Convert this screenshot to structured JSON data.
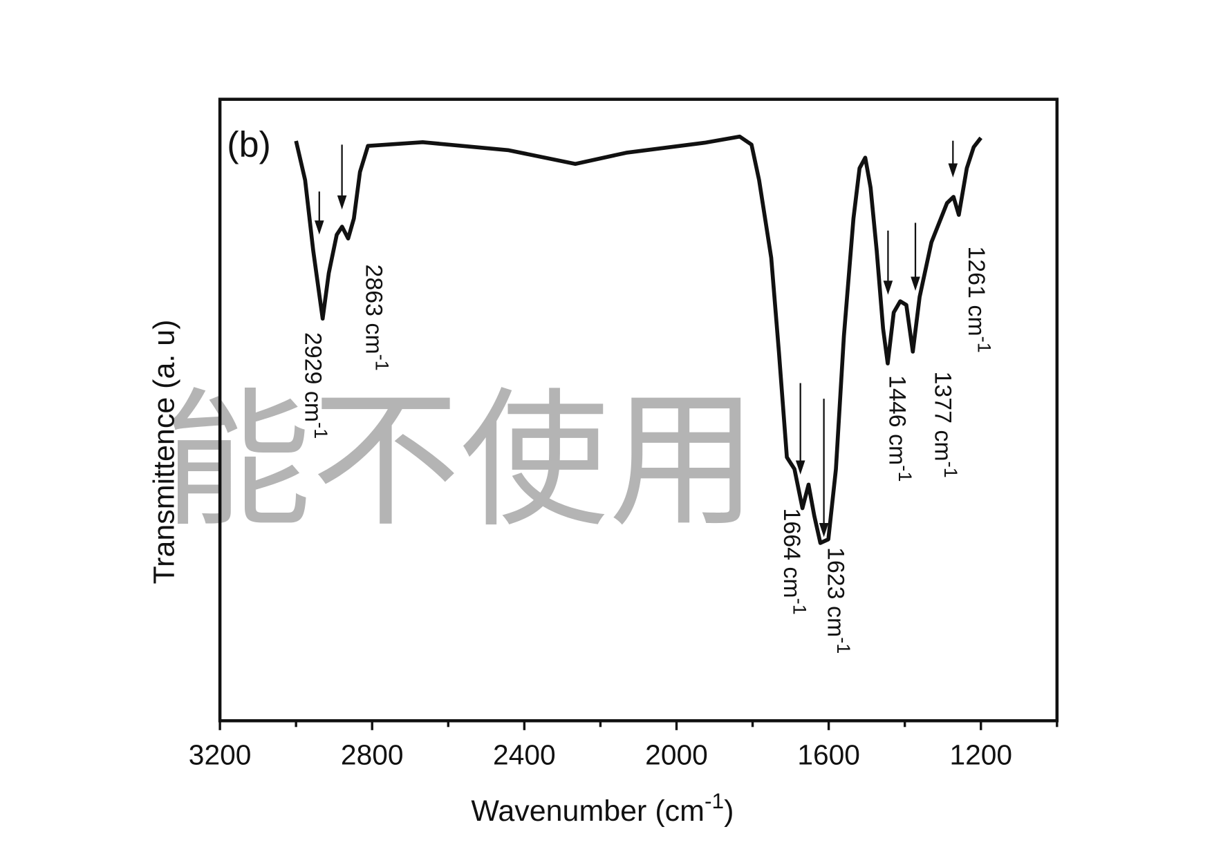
{
  "chart_data": {
    "type": "line",
    "panel_label": "(b)",
    "watermark": "能不使用",
    "xlabel": {
      "text": "Wavenumber (cm",
      "sup": "-1",
      "close": ")"
    },
    "ylabel": "Transmittence (a. u)",
    "xlim": [
      3200,
      1000
    ],
    "ylim": [
      0,
      100
    ],
    "xticks": [
      3200,
      2800,
      2400,
      2000,
      1600,
      1200
    ],
    "xminorticks": [
      3000,
      2600,
      2200,
      1800,
      1400,
      1000
    ],
    "series": [
      {
        "color": "#111111",
        "x": [
          3000,
          2976,
          2955,
          2930,
          2914,
          2893,
          2879,
          2863,
          2848,
          2832,
          2811,
          2667,
          2441,
          2266,
          2132,
          1926,
          1834,
          1803,
          1783,
          1751,
          1731,
          1710,
          1690,
          1669,
          1653,
          1638,
          1622,
          1601,
          1581,
          1560,
          1535,
          1519,
          1504,
          1490,
          1474,
          1457,
          1445,
          1429,
          1412,
          1396,
          1379,
          1361,
          1330,
          1289,
          1272,
          1258,
          1237,
          1219,
          1200
        ],
        "values": [
          93.3,
          87,
          75.7,
          64.7,
          72,
          78.2,
          79.5,
          77.6,
          80.8,
          88.3,
          92.5,
          93.1,
          91.8,
          89.6,
          91.4,
          93,
          94,
          92.7,
          87,
          74.5,
          59.4,
          42.4,
          40.5,
          34.2,
          38,
          33,
          28.6,
          29.2,
          40.5,
          61.9,
          80.8,
          88.9,
          90.6,
          85.8,
          75.7,
          63.1,
          57.5,
          65.7,
          67.5,
          66.9,
          59.4,
          68.2,
          77,
          83.3,
          84.3,
          81.4,
          88.9,
          92.3,
          93.8
        ]
      }
    ],
    "annotations": [
      {
        "label": "2929 cm",
        "sup": "-1"
      },
      {
        "label": "2863 cm",
        "sup": "-1"
      },
      {
        "label": "1664 cm",
        "sup": "-1"
      },
      {
        "label": "1623 cm",
        "sup": "-1"
      },
      {
        "label": "1446 cm",
        "sup": "-1"
      },
      {
        "label": "1377 cm",
        "sup": "-1"
      },
      {
        "label": "1261 cm",
        "sup": "-1"
      }
    ]
  }
}
